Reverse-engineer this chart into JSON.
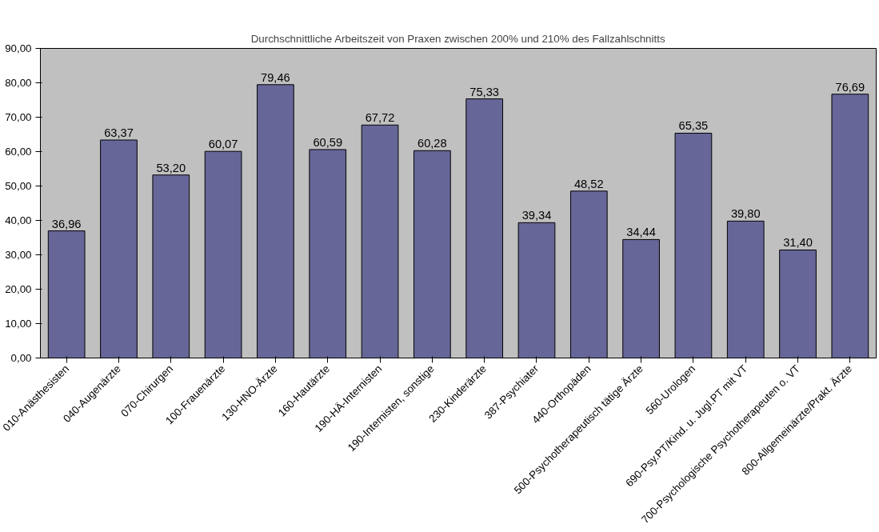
{
  "chart_data": {
    "type": "bar",
    "title": "Durchschnittliche Arbeitszeit von Praxen zwischen 200% und 210% des Fallzahlschnitts",
    "categories": [
      "010-Anästhesisten",
      "040-Augenärzte",
      "070-Chirurgen",
      "100-Frauenärzte",
      "130-HNO-Ärzte",
      "160-Hautärzte",
      "190-HÄ-Internisten",
      "190-Internisten, sonstige",
      "230-Kinderärzte",
      "387-Psychiater",
      "440-Orthopäden",
      "500-Psychotherapeutisch tätige Ärzte",
      "560-Urologen",
      "690-Psy.PT/Kind. u. Jugl.PT mit VT",
      "700-Psychologische Psychotherapeuten o. VT",
      "800-Allgemeinärzte/Prakt. Ärzte"
    ],
    "values": [
      36.96,
      63.37,
      53.2,
      60.07,
      79.46,
      60.59,
      67.72,
      60.28,
      75.33,
      39.34,
      48.52,
      34.44,
      65.35,
      39.8,
      31.4,
      76.69
    ],
    "value_labels": [
      "36,96",
      "63,37",
      "53,20",
      "60,07",
      "79,46",
      "60,59",
      "67,72",
      "60,28",
      "75,33",
      "39,34",
      "48,52",
      "34,44",
      "65,35",
      "39,80",
      "31,40",
      "76,69"
    ],
    "color": "#666699",
    "ylim": [
      0,
      90
    ],
    "yticks": [
      {
        "value": 0,
        "label": "0,00"
      },
      {
        "value": 10,
        "label": "10,00"
      },
      {
        "value": 20,
        "label": "20,00"
      },
      {
        "value": 30,
        "label": "30,00"
      },
      {
        "value": 40,
        "label": "40,00"
      },
      {
        "value": 50,
        "label": "50,00"
      },
      {
        "value": 60,
        "label": "60,00"
      },
      {
        "value": 70,
        "label": "70,00"
      },
      {
        "value": 80,
        "label": "80,00"
      },
      {
        "value": 90,
        "label": "90,00"
      }
    ],
    "grid": false
  }
}
